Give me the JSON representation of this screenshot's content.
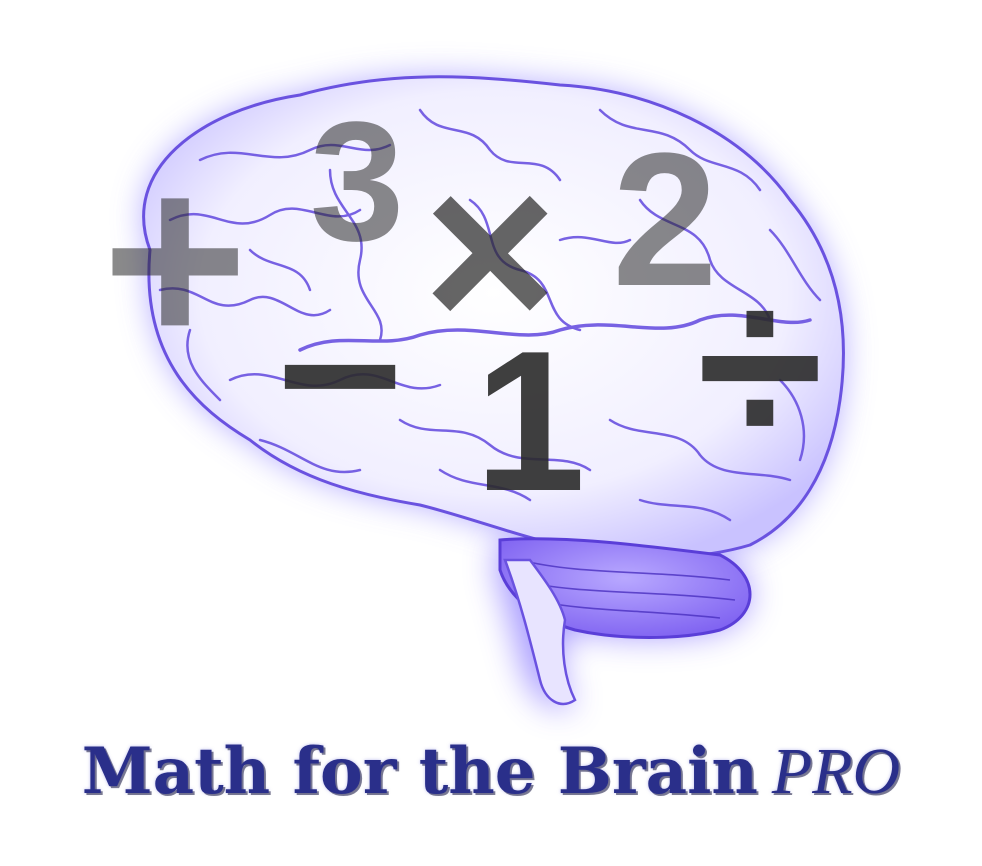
{
  "title": {
    "main": "Math for the Brain",
    "suffix": "PRO"
  },
  "symbols": {
    "plus": "+",
    "three": "3",
    "times": "×",
    "two": "2",
    "minus": "−",
    "one": "1",
    "divide": "÷"
  },
  "colors": {
    "brain_glow": "#a09cff",
    "brain_outline": "#6a52e0",
    "title_text": "#2a2f8a",
    "symbol": "#2a2a2a"
  }
}
